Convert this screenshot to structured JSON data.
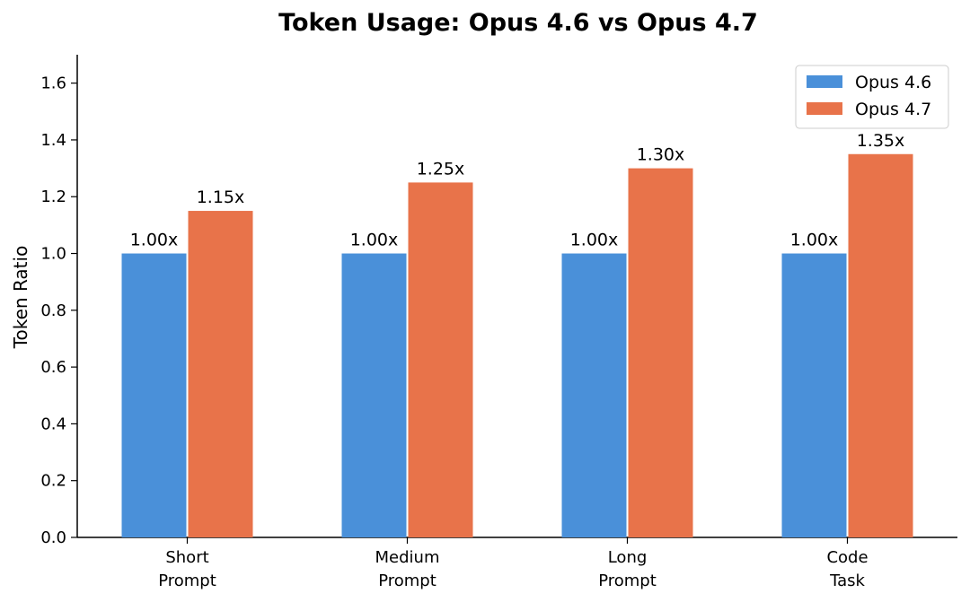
{
  "chart_data": {
    "type": "bar",
    "title": "Token Usage: Opus 4.6 vs Opus 4.7",
    "xlabel": "",
    "ylabel": "Token Ratio",
    "categories": [
      [
        "Short",
        "Prompt"
      ],
      [
        "Medium",
        "Prompt"
      ],
      [
        "Long",
        "Prompt"
      ],
      [
        "Code",
        "Task"
      ]
    ],
    "series": [
      {
        "name": "Opus 4.6",
        "color": "#4a90d9",
        "values": [
          1.0,
          1.0,
          1.0,
          1.0
        ],
        "labels": [
          "1.00x",
          "1.00x",
          "1.00x",
          "1.00x"
        ]
      },
      {
        "name": "Opus 4.7",
        "color": "#e8734a",
        "values": [
          1.15,
          1.25,
          1.3,
          1.35
        ],
        "labels": [
          "1.15x",
          "1.25x",
          "1.30x",
          "1.35x"
        ]
      }
    ],
    "ylim": [
      0,
      1.7
    ],
    "yticks": [
      0.0,
      0.2,
      0.4,
      0.6,
      0.8,
      1.0,
      1.2,
      1.4,
      1.6
    ],
    "ytick_labels": [
      "0.0",
      "0.2",
      "0.4",
      "0.6",
      "0.8",
      "1.0",
      "1.2",
      "1.4",
      "1.6"
    ],
    "grid": false,
    "legend_position": "top-right"
  }
}
